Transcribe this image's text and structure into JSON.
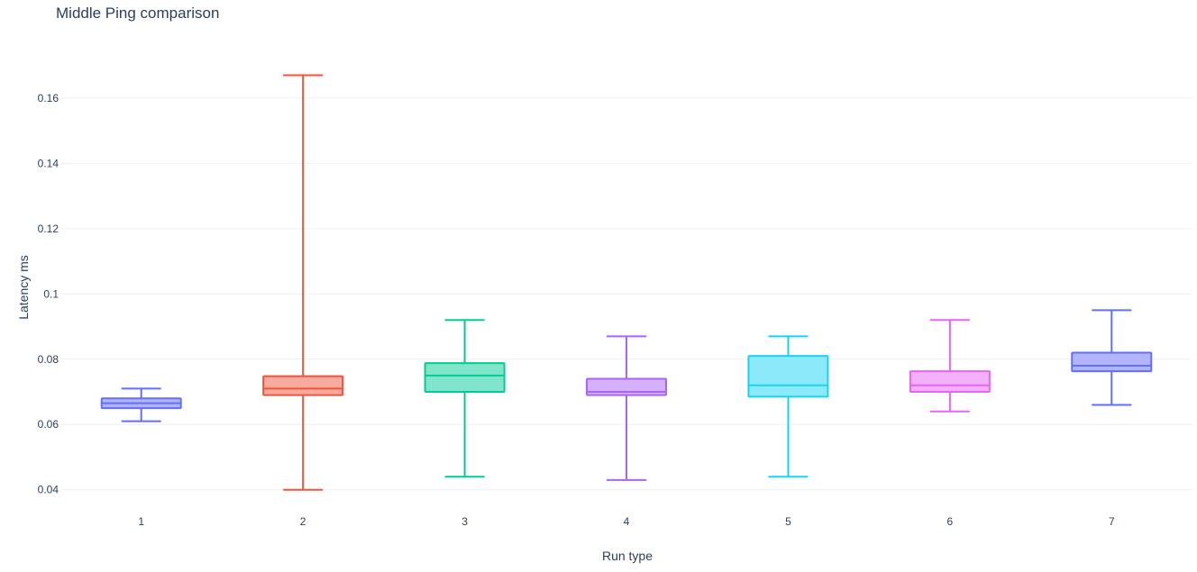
{
  "chart_data": {
    "type": "box",
    "title": "Middle Ping comparison",
    "xlabel": "Run type",
    "ylabel": "Latency ms",
    "ylim": [
      0.0355,
      0.1735
    ],
    "yticks": [
      0.04,
      0.06,
      0.08,
      0.1,
      0.12,
      0.14,
      0.16
    ],
    "ytick_labels": [
      "0.04",
      "0.06",
      "0.08",
      "0.1",
      "0.12",
      "0.14",
      "0.16"
    ],
    "categories": [
      "1",
      "2",
      "3",
      "4",
      "5",
      "6",
      "7"
    ],
    "grid": true,
    "legend": false,
    "boxes": [
      {
        "category": "1",
        "min": 0.061,
        "q1": 0.065,
        "median": 0.0665,
        "q3": 0.068,
        "max": 0.071,
        "color": "#636efa",
        "fill": "#b1b6fc"
      },
      {
        "category": "2",
        "min": 0.04,
        "q1": 0.069,
        "median": 0.071,
        "q3": 0.0748,
        "max": 0.167,
        "color": "#ef553b",
        "fill": "#f7aa9d"
      },
      {
        "category": "3",
        "min": 0.044,
        "q1": 0.07,
        "median": 0.075,
        "q3": 0.0788,
        "max": 0.092,
        "color": "#00cc96",
        "fill": "#80e5ca"
      },
      {
        "category": "4",
        "min": 0.043,
        "q1": 0.069,
        "median": 0.07,
        "q3": 0.074,
        "max": 0.087,
        "color": "#ab63fa",
        "fill": "#d5b1fc"
      },
      {
        "category": "5",
        "min": 0.044,
        "q1": 0.0685,
        "median": 0.072,
        "q3": 0.081,
        "max": 0.087,
        "color": "#19d3f3",
        "fill": "#8ce9f9"
      },
      {
        "category": "6",
        "min": 0.064,
        "q1": 0.07,
        "median": 0.072,
        "q3": 0.0763,
        "max": 0.092,
        "color": "#e763fa",
        "fill": "#f3b1fc"
      },
      {
        "category": "7",
        "min": 0.066,
        "q1": 0.0763,
        "median": 0.078,
        "q3": 0.082,
        "max": 0.095,
        "color": "#636efa",
        "fill": "#b1b6fc"
      }
    ]
  }
}
